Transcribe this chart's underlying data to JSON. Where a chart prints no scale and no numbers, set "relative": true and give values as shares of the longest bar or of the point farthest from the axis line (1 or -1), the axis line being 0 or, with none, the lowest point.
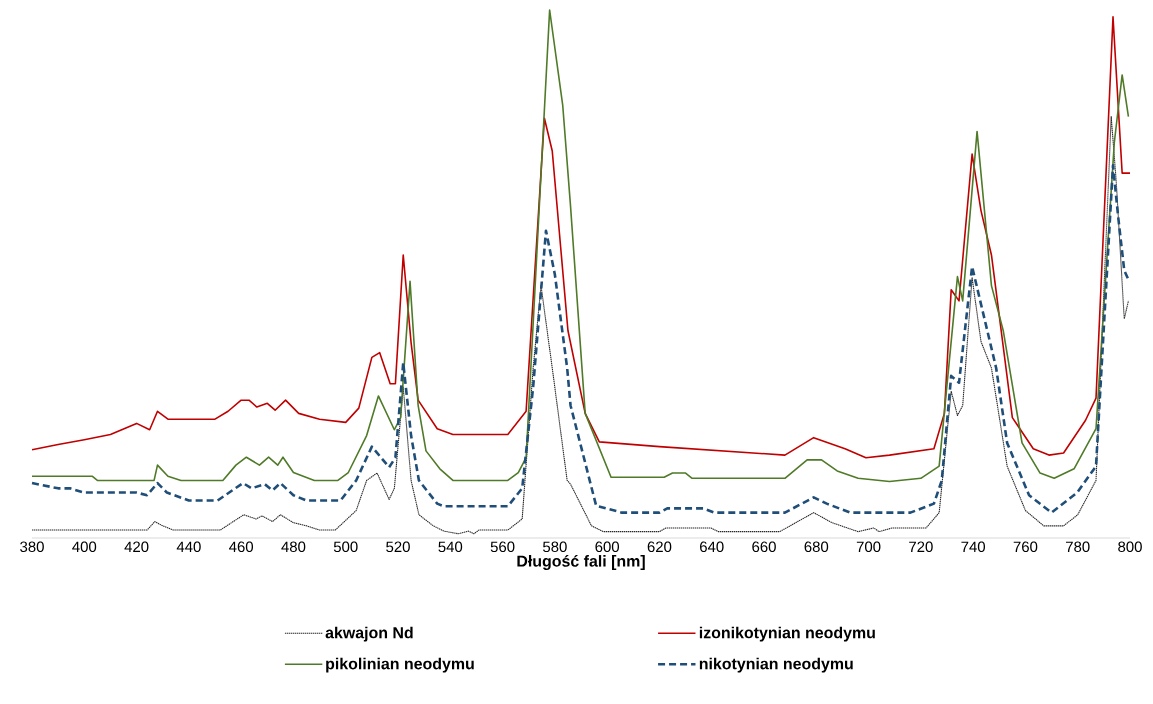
{
  "chart_data": {
    "type": "line",
    "relative": true,
    "xlabel": "Długość fali [nm]",
    "xlim": [
      380,
      800
    ],
    "xticks": [
      380,
      400,
      420,
      440,
      460,
      480,
      500,
      520,
      540,
      560,
      580,
      600,
      620,
      640,
      660,
      680,
      700,
      720,
      740,
      760,
      780,
      800
    ],
    "legend": "bottom",
    "grid": false,
    "marker": "none",
    "series": [
      {
        "name": "akwajon Nd",
        "color": "#262626",
        "line_style": "dotted",
        "x": [
          380,
          424,
          427,
          430,
          434,
          452,
          461,
          465.7,
          468,
          472,
          475,
          480,
          485,
          490,
          496,
          504,
          508,
          512,
          516.6,
          518.6,
          522,
          525,
          528,
          533.5,
          537.6,
          543,
          547,
          549,
          551,
          562,
          567.5,
          571.7,
          574.7,
          579,
          584.7,
          586,
          594,
          598.5,
          620,
          622.5,
          639.7,
          642.5,
          666,
          679,
          686,
          696,
          702,
          704,
          709,
          722,
          727,
          731.6,
          734,
          736,
          739.6,
          743,
          747,
          753,
          760,
          767,
          774.6,
          780,
          787,
          792.8,
          794.7,
          797.8,
          799.4
        ],
        "values": [
          0.015,
          0.015,
          0.031,
          0.023,
          0.015,
          0.015,
          0.044,
          0.036,
          0.042,
          0.031,
          0.044,
          0.029,
          0.023,
          0.015,
          0.015,
          0.052,
          0.109,
          0.123,
          0.073,
          0.094,
          0.286,
          0.109,
          0.044,
          0.023,
          0.013,
          0.008,
          0.013,
          0.008,
          0.015,
          0.015,
          0.036,
          0.322,
          0.478,
          0.322,
          0.109,
          0.102,
          0.023,
          0.012,
          0.012,
          0.019,
          0.019,
          0.012,
          0.012,
          0.048,
          0.029,
          0.012,
          0.019,
          0.012,
          0.019,
          0.019,
          0.048,
          0.278,
          0.232,
          0.251,
          0.493,
          0.372,
          0.322,
          0.136,
          0.052,
          0.023,
          0.023,
          0.044,
          0.109,
          0.798,
          0.678,
          0.415,
          0.449
        ]
      },
      {
        "name": "izonikotynian neodymu",
        "color": "#c00000",
        "line_style": "solid",
        "x": [
          380,
          390,
          400,
          410,
          420,
          425,
          428,
          432,
          450,
          455,
          460,
          463,
          466,
          470,
          473,
          477,
          482,
          490,
          500,
          505,
          510,
          513,
          517,
          519,
          522,
          525,
          527.7,
          535,
          541,
          562,
          569,
          576,
          579,
          585,
          591.6,
          597,
          620,
          668,
          679,
          691,
          699,
          708,
          725,
          729,
          731.6,
          734.6,
          739.6,
          743,
          747,
          755,
          763,
          769,
          774.6,
          783,
          787,
          793.5,
          797,
          800
        ],
        "values": [
          0.167,
          0.177,
          0.186,
          0.196,
          0.217,
          0.205,
          0.24,
          0.225,
          0.225,
          0.24,
          0.261,
          0.261,
          0.248,
          0.255,
          0.242,
          0.261,
          0.236,
          0.225,
          0.219,
          0.246,
          0.342,
          0.351,
          0.292,
          0.292,
          0.536,
          0.37,
          0.261,
          0.207,
          0.196,
          0.196,
          0.24,
          0.795,
          0.733,
          0.393,
          0.236,
          0.182,
          0.173,
          0.157,
          0.19,
          0.169,
          0.152,
          0.157,
          0.169,
          0.236,
          0.47,
          0.449,
          0.727,
          0.62,
          0.536,
          0.228,
          0.169,
          0.157,
          0.161,
          0.223,
          0.265,
          0.987,
          0.691,
          0.691
        ]
      },
      {
        "name": "pikolinian neodymu",
        "color": "#4f7a28",
        "line_style": "solid",
        "x": [
          380,
          403,
          405,
          426.7,
          428,
          432,
          437,
          453,
          458,
          462,
          467,
          470.5,
          474,
          476,
          480,
          488,
          497,
          501,
          508,
          512.5,
          518.6,
          521,
          524.6,
          527.7,
          530.7,
          536,
          541,
          562,
          566,
          569,
          578,
          583,
          586,
          591.6,
          601.5,
          621.8,
          625,
          630,
          632.5,
          668,
          676.5,
          682,
          688,
          696,
          708,
          720,
          727,
          734,
          736,
          741.5,
          747,
          751.5,
          758.7,
          765.6,
          771,
          778.6,
          787,
          794,
          797,
          799.4
        ],
        "values": [
          0.117,
          0.117,
          0.109,
          0.109,
          0.138,
          0.117,
          0.109,
          0.109,
          0.138,
          0.153,
          0.138,
          0.153,
          0.138,
          0.153,
          0.124,
          0.109,
          0.109,
          0.124,
          0.194,
          0.269,
          0.205,
          0.228,
          0.486,
          0.251,
          0.165,
          0.131,
          0.109,
          0.109,
          0.124,
          0.152,
          1.0,
          0.82,
          0.628,
          0.236,
          0.115,
          0.115,
          0.123,
          0.123,
          0.113,
          0.113,
          0.148,
          0.148,
          0.127,
          0.113,
          0.107,
          0.113,
          0.136,
          0.495,
          0.449,
          0.77,
          0.478,
          0.393,
          0.18,
          0.123,
          0.113,
          0.131,
          0.207,
          0.749,
          0.877,
          0.798
        ]
      },
      {
        "name": "nikotynian neodymu",
        "color": "#1f4e79",
        "line_style": "dashed",
        "x": [
          380,
          390,
          394.5,
          400,
          420,
          424,
          428,
          431.6,
          440,
          451,
          460.7,
          464,
          469,
          472,
          475,
          480,
          485,
          498,
          504,
          510,
          516.6,
          519,
          522,
          525,
          528,
          535,
          537.6,
          562,
          567.5,
          571.7,
          576.6,
          580,
          584.7,
          586,
          595.8,
          605.7,
          620,
          623,
          636.7,
          641,
          668,
          679,
          684,
          693,
          716,
          725,
          728,
          731.6,
          734.6,
          739.6,
          743,
          748.8,
          753,
          761.4,
          770,
          779.8,
          787,
          793.5,
          795.5,
          797.8,
          799.4
        ],
        "values": [
          0.104,
          0.094,
          0.094,
          0.086,
          0.086,
          0.081,
          0.104,
          0.086,
          0.071,
          0.071,
          0.104,
          0.094,
          0.102,
          0.09,
          0.104,
          0.081,
          0.071,
          0.071,
          0.109,
          0.173,
          0.134,
          0.152,
          0.332,
          0.194,
          0.109,
          0.065,
          0.06,
          0.06,
          0.094,
          0.286,
          0.582,
          0.499,
          0.322,
          0.251,
          0.061,
          0.048,
          0.048,
          0.056,
          0.056,
          0.048,
          0.048,
          0.077,
          0.065,
          0.048,
          0.048,
          0.065,
          0.109,
          0.307,
          0.294,
          0.514,
          0.443,
          0.322,
          0.18,
          0.081,
          0.048,
          0.086,
          0.136,
          0.706,
          0.607,
          0.507,
          0.489
        ]
      }
    ]
  }
}
